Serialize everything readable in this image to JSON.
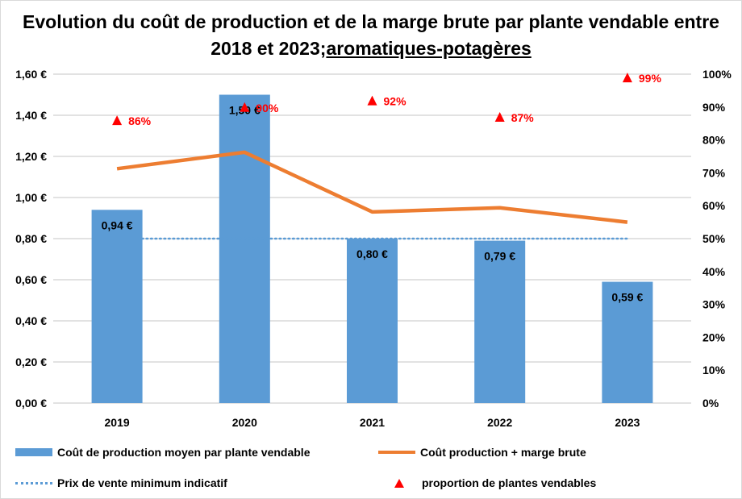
{
  "chart_data": {
    "type": "bar",
    "title": "Evolution du coût de production et de la marge brute par plante vendable entre 2018 et 2023;",
    "title_underlined": "aromatiques-potagères",
    "categories": [
      "2019",
      "2020",
      "2021",
      "2022",
      "2023"
    ],
    "y_left": {
      "lim": [
        0,
        1.6
      ],
      "ticks": [
        "0,00 €",
        "0,20 €",
        "0,40 €",
        "0,60 €",
        "0,80 €",
        "1,00 €",
        "1,20 €",
        "1,40 €",
        "1,60 €"
      ]
    },
    "y_right": {
      "lim": [
        0,
        100
      ],
      "ticks": [
        "0%",
        "10%",
        "20%",
        "30%",
        "40%",
        "50%",
        "60%",
        "70%",
        "80%",
        "90%",
        "100%"
      ]
    },
    "grid": true,
    "legend_position": "bottom",
    "series": [
      {
        "name": "Coût de production moyen par plante vendable",
        "type": "bar",
        "axis": "left",
        "color": "#5b9bd5",
        "values": [
          0.94,
          1.5,
          0.8,
          0.79,
          0.59
        ],
        "labels": [
          "0,94 €",
          "1,50 €",
          "0,80 €",
          "0,79 €",
          "0,59 €"
        ]
      },
      {
        "name": "Coût production + marge brute",
        "type": "line",
        "axis": "left",
        "color": "#ed7d31",
        "values": [
          1.14,
          1.22,
          0.93,
          0.95,
          0.88
        ]
      },
      {
        "name": "Prix de vente minimum indicatif",
        "type": "line-dotted",
        "axis": "left",
        "color": "#5b9bd5",
        "values": [
          0.8,
          0.8,
          0.8,
          0.8,
          0.8
        ]
      },
      {
        "name": "proportion de plantes vendables",
        "type": "scatter-triangle",
        "axis": "right",
        "color": "#ff0000",
        "values": [
          86,
          90,
          92,
          87,
          99
        ],
        "labels": [
          "86%",
          "90%",
          "92%",
          "87%",
          "99%"
        ]
      }
    ]
  }
}
